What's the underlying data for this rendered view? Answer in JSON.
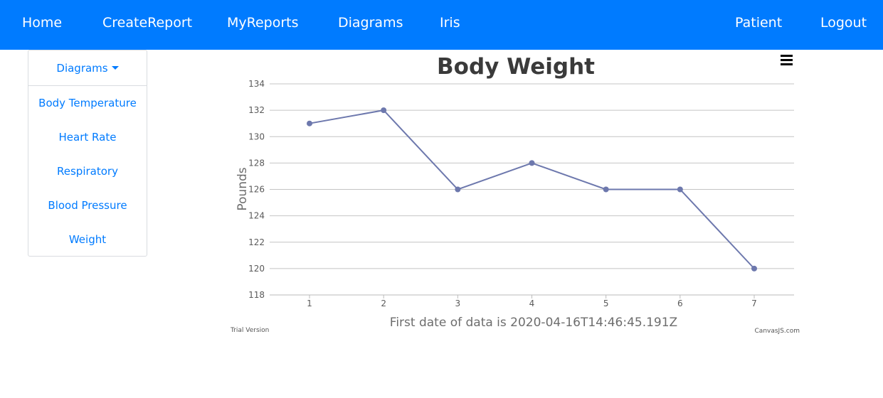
{
  "navbar": {
    "left_items": [
      "Home",
      "CreateReport",
      "MyReports",
      "Diagrams",
      "Iris"
    ],
    "right_items": [
      "Patient",
      "Logout"
    ],
    "color": "#007bff"
  },
  "sidebar": {
    "toggle_label": "Diagrams",
    "items": [
      "Body Temperature",
      "Heart Rate",
      "Respiratory",
      "Blood Pressure",
      "Weight"
    ]
  },
  "chart": {
    "menu_icon": "hamburger-menu-icon",
    "trial_note": "Trial Version",
    "credit": "CanvasJS.com"
  },
  "chart_data": {
    "type": "line",
    "title": "Body Weight",
    "xlabel": "First date of data is 2020-04-16T14:46:45.191Z",
    "ylabel": "Pounds",
    "x": [
      1,
      2,
      3,
      4,
      5,
      6,
      7
    ],
    "values": [
      131,
      132,
      126,
      128,
      126,
      126,
      120
    ],
    "ylim": [
      118,
      134
    ],
    "ytick_step": 2,
    "grid": true,
    "line_color": "#6d78ad"
  }
}
